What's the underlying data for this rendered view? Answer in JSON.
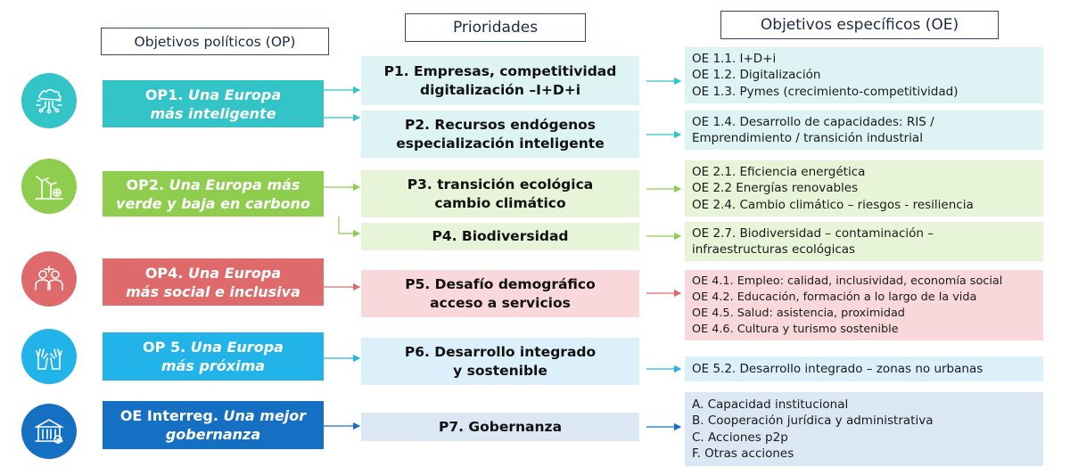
{
  "headers": {
    "op": "Objetivos políticos (OP)",
    "prioridades": "Prioridades",
    "oe": "Objetivos específicos (OE)"
  },
  "colors": {
    "op1": "#33c4c7",
    "op2": "#8fcd4f",
    "op4": "#df6a6b",
    "op5": "#22b4e9",
    "interreg": "#1570c4",
    "p1": "#ddf3f4",
    "p3": "#e8f4d8",
    "p5": "#f8d8da",
    "p6": "#dbf0fb",
    "p7": "#dbe7f4"
  },
  "icons": [
    "ai-brain-icon",
    "wind-energy-icon",
    "people-icon",
    "raised-hands-icon",
    "government-building-icon"
  ],
  "op": {
    "op1": {
      "prefix": "OP1.",
      "title_a": "Una Europa",
      "title_b": "más inteligente"
    },
    "op2": {
      "prefix": "OP2.",
      "title_a": "Una Europa más",
      "title_b": "verde y baja en carbono"
    },
    "op4": {
      "prefix": "OP4.",
      "title_a": "Una Europa",
      "title_b": "más social e inclusiva"
    },
    "op5": {
      "prefix": "OP 5.",
      "title_a": "Una Europa",
      "title_b": "más próxima"
    },
    "interreg": {
      "prefix": "OE Interreg.",
      "title_a": "Una mejor",
      "title_b": "gobernanza"
    }
  },
  "prioridades": {
    "p1": [
      "P1. Empresas, competitividad",
      "digitalización –I+D+i"
    ],
    "p2": [
      "P2. Recursos endógenos",
      "especialización inteligente"
    ],
    "p3": [
      "P3. transición ecológica",
      "cambio climático"
    ],
    "p4": [
      "P4. Biodiversidad"
    ],
    "p5": [
      "P5. Desafío demográfico",
      "acceso a servicios"
    ],
    "p6": [
      "P6. Desarrollo integrado",
      "y sostenible"
    ],
    "p7": [
      "P7. Gobernanza"
    ]
  },
  "oe": {
    "g1": [
      "OE 1.1. I+D+i",
      "OE 1.2. Digitalización",
      "OE 1.3. Pymes (crecimiento-competitividad)"
    ],
    "g2": [
      "OE 1.4. Desarrollo de capacidades: RIS /",
      "Emprendimiento / transición industrial"
    ],
    "g3": [
      "OE 2.1. Eficiencia energética",
      "OE 2.2 Energías renovables",
      "OE 2.4. Cambio climático – riesgos - resiliencia"
    ],
    "g4": [
      "OE 2.7. Biodiversidad – contaminación –",
      "infraestructuras ecológicas"
    ],
    "g5": [
      "OE 4.1. Empleo: calidad, inclusividad, economía social",
      "OE 4.2. Educación, formación a lo largo de la vida",
      "OE 4.5. Salud: asistencia, proximidad",
      "OE 4.6. Cultura y turismo sostenible"
    ],
    "g6": [
      "OE 5.2. Desarrollo integrado – zonas no urbanas"
    ],
    "g7": [
      "A.  Capacidad institucional",
      "B.  Cooperación jurídica y administrativa",
      "C.  Acciones p2p",
      "F.  Otras acciones"
    ]
  }
}
